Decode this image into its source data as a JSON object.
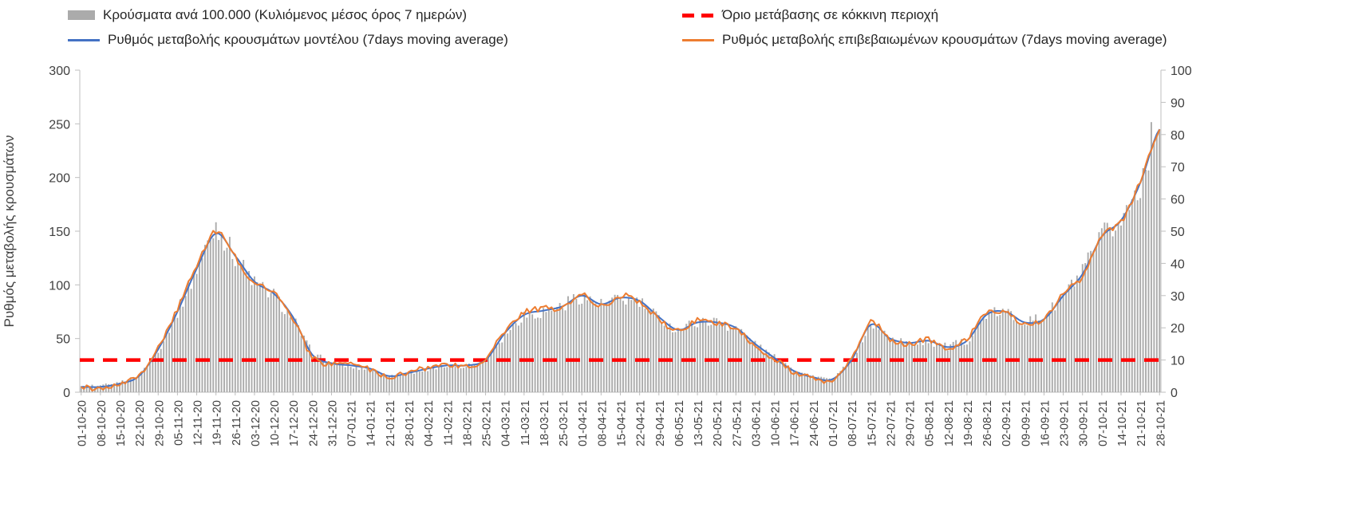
{
  "chart_data": {
    "type": "combo",
    "title": "",
    "ylabel_left": "Ρυθμός μεταβολής κρουσμάτων",
    "legend_position": "top",
    "grid": false,
    "axes": {
      "left": {
        "min": 0,
        "max": 300,
        "step": 50
      },
      "right": {
        "min": 0,
        "max": 100,
        "step": 10
      }
    },
    "categories": [
      "01-10-20",
      "08-10-20",
      "15-10-20",
      "22-10-20",
      "29-10-20",
      "05-11-20",
      "12-11-20",
      "19-11-20",
      "26-11-20",
      "03-12-20",
      "10-12-20",
      "17-12-20",
      "24-12-20",
      "31-12-20",
      "07-01-21",
      "14-01-21",
      "21-01-21",
      "28-01-21",
      "04-02-21",
      "11-02-21",
      "18-02-21",
      "25-02-21",
      "04-03-21",
      "11-03-21",
      "18-03-21",
      "25-03-21",
      "01-04-21",
      "08-04-21",
      "15-04-21",
      "22-04-21",
      "29-04-21",
      "06-05-21",
      "13-05-21",
      "20-05-21",
      "27-05-21",
      "03-06-21",
      "10-06-21",
      "17-06-21",
      "24-06-21",
      "01-07-21",
      "08-07-21",
      "15-07-21",
      "22-07-21",
      "29-07-21",
      "05-08-21",
      "12-08-21",
      "19-08-21",
      "26-08-21",
      "02-09-21",
      "09-09-21",
      "16-09-21",
      "23-09-21",
      "30-09-21",
      "07-10-21",
      "14-10-21",
      "21-10-21",
      "28-10-21"
    ],
    "series": [
      {
        "name": "Κρούσματα ανά 100.000 (Κυλιόμενος μέσος όρος 7 ημερών)",
        "type": "bar",
        "axis": "right",
        "color": "#ababab",
        "values": [
          2,
          2,
          3,
          5,
          13,
          25,
          38,
          52,
          42,
          34,
          30,
          23,
          12,
          9,
          8,
          7,
          5,
          6,
          7,
          8,
          8,
          10,
          18,
          24,
          25,
          27,
          30,
          27,
          29,
          28,
          23,
          19,
          22,
          22,
          20,
          15,
          11,
          7,
          5,
          4,
          10,
          21,
          17,
          15,
          16,
          14,
          16,
          24,
          25,
          22,
          23,
          30,
          37,
          48,
          53,
          65,
          87
        ]
      },
      {
        "name": "Ρυθμός μεταβολής κρουσμάτων μοντέλου (7days moving average)",
        "type": "line",
        "axis": "left",
        "color": "#4472c4",
        "values": [
          5,
          5,
          8,
          15,
          40,
          75,
          115,
          148,
          127,
          103,
          92,
          70,
          35,
          27,
          25,
          22,
          15,
          18,
          22,
          25,
          25,
          30,
          55,
          72,
          76,
          80,
          90,
          82,
          88,
          85,
          70,
          58,
          65,
          65,
          60,
          45,
          32,
          20,
          14,
          12,
          30,
          63,
          50,
          46,
          48,
          42,
          48,
          72,
          75,
          65,
          68,
          90,
          110,
          145,
          160,
          195,
          245
        ]
      },
      {
        "name": "Ρυθμός μεταβολής επιβεβαιωμένων κρουσμάτων (7days moving average)",
        "type": "line",
        "axis": "left",
        "color": "#ed7d31",
        "values": [
          4,
          4,
          7,
          16,
          42,
          78,
          118,
          150,
          126,
          101,
          94,
          68,
          33,
          26,
          26,
          21,
          14,
          19,
          23,
          26,
          24,
          31,
          57,
          74,
          78,
          79,
          92,
          80,
          90,
          84,
          68,
          57,
          67,
          64,
          59,
          43,
          31,
          19,
          13,
          11,
          32,
          65,
          49,
          45,
          49,
          41,
          50,
          74,
          74,
          63,
          69,
          92,
          108,
          147,
          158,
          197,
          243
        ]
      }
    ],
    "threshold": {
      "name": "Όριο μετάβασης σε κόκκινη περιοχή",
      "axis": "right",
      "value": 10,
      "value_left_axis": 30,
      "color": "#ff0000",
      "style": "dashed"
    }
  }
}
